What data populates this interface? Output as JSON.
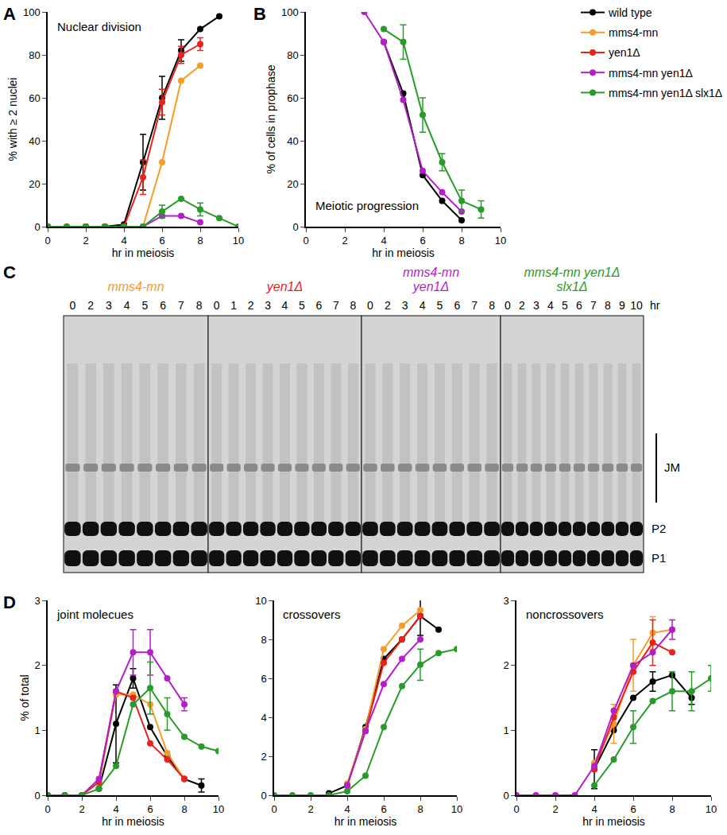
{
  "chart_data": [
    {
      "type": "line",
      "panel": "A",
      "title": "Nuclear division",
      "x_label": "hr in meiosis",
      "y_label": "% with ≥ 2 nuclei",
      "xlim": [
        0,
        10
      ],
      "xticks": [
        0,
        2,
        4,
        6,
        8,
        10
      ],
      "ylim": [
        0,
        100
      ],
      "yticks": [
        0,
        20,
        40,
        60,
        80,
        100
      ],
      "grid": false,
      "legend": "top right",
      "marker": "circle",
      "series": [
        {
          "name": "wild type",
          "color": "#000000",
          "x": [
            0,
            2,
            3,
            4,
            5,
            6,
            7,
            8,
            9
          ],
          "values": [
            0,
            0,
            0,
            1,
            30,
            60,
            82,
            92,
            98
          ],
          "errors": [
            null,
            null,
            null,
            null,
            13,
            10,
            5,
            null,
            null
          ]
        },
        {
          "name": "mms4-mn",
          "color": "#f39c2b",
          "x": [
            0,
            2,
            3,
            4,
            5,
            6,
            7,
            8
          ],
          "values": [
            0,
            0,
            0,
            0,
            0,
            30,
            68,
            75
          ],
          "errors": [
            null,
            null,
            null,
            null,
            null,
            null,
            null,
            null
          ]
        },
        {
          "name": "yen1Δ",
          "color": "#e8231e",
          "x": [
            0,
            1,
            2,
            3,
            4,
            5,
            6,
            7,
            8
          ],
          "values": [
            0,
            0,
            0,
            0,
            0,
            23,
            58,
            80,
            85
          ],
          "errors": [
            null,
            null,
            null,
            null,
            null,
            8,
            6,
            4,
            3
          ]
        },
        {
          "name": "mms4-mn yen1Δ",
          "color": "#b21fc7",
          "x": [
            0,
            2,
            3,
            4,
            5,
            6,
            7,
            8
          ],
          "values": [
            0,
            0,
            0,
            0,
            0,
            5,
            5,
            2
          ],
          "errors": [
            null,
            null,
            null,
            null,
            null,
            null,
            null,
            null
          ]
        },
        {
          "name": "mms4-mn yen1Δ slx1Δ",
          "color": "#2a9a2a",
          "x": [
            0,
            1,
            2,
            3,
            4,
            5,
            6,
            7,
            8,
            9,
            10
          ],
          "values": [
            0,
            0,
            0,
            0,
            0,
            0,
            7,
            13,
            8,
            4,
            0
          ],
          "errors": [
            null,
            null,
            null,
            null,
            null,
            null,
            3,
            null,
            3,
            null,
            null
          ]
        }
      ]
    },
    {
      "type": "line",
      "panel": "B",
      "title": "Meiotic progression",
      "x_label": "hr in meiosis",
      "y_label": "% of cells in prophase",
      "xlim": [
        0,
        10
      ],
      "xticks": [
        0,
        2,
        4,
        6,
        8,
        10
      ],
      "ylim": [
        0,
        100
      ],
      "yticks": [
        0,
        20,
        40,
        60,
        80,
        100
      ],
      "grid": false,
      "marker": "circle",
      "series": [
        {
          "name": "wild type",
          "color": "#000000",
          "x": [
            4,
            5,
            6,
            7,
            8
          ],
          "values": [
            86,
            62,
            24,
            12,
            3
          ],
          "errors": [
            null,
            null,
            null,
            null,
            null
          ]
        },
        {
          "name": "mms4-mn yen1Δ",
          "color": "#b21fc7",
          "x": [
            3,
            4,
            5,
            6,
            7,
            8
          ],
          "values": [
            100,
            86,
            59,
            26,
            16,
            7
          ],
          "errors": [
            null,
            null,
            null,
            null,
            null,
            null
          ]
        },
        {
          "name": "mms4-mn yen1Δ slx1Δ",
          "color": "#2a9a2a",
          "x": [
            4,
            5,
            6,
            7,
            8,
            9
          ],
          "values": [
            92,
            86,
            52,
            30,
            12,
            8
          ],
          "errors": [
            null,
            8,
            8,
            4,
            5,
            4
          ]
        }
      ]
    },
    {
      "type": "line",
      "panel": "D",
      "title": "joint molecues",
      "x_label": "hr in meiosis",
      "y_label": "% of total",
      "xlim": [
        0,
        10
      ],
      "xticks": [
        0,
        2,
        4,
        6,
        8,
        10
      ],
      "ylim": [
        0,
        3
      ],
      "yticks": [
        0,
        1,
        2,
        3
      ],
      "grid": false,
      "marker": "circle",
      "series": [
        {
          "name": "wild type",
          "color": "#000000",
          "x": [
            3,
            4,
            5,
            6,
            7,
            8,
            9
          ],
          "values": [
            0.1,
            1.1,
            1.8,
            1.05,
            0.6,
            0.25,
            0.15
          ],
          "errors": [
            null,
            0.6,
            0.15,
            null,
            null,
            null,
            0.1
          ]
        },
        {
          "name": "mms4-mn",
          "color": "#f39c2b",
          "x": [
            3,
            4,
            5,
            6,
            7,
            8
          ],
          "values": [
            0.2,
            1.55,
            1.55,
            1.4,
            0.65,
            0.25
          ],
          "errors": [
            null,
            null,
            null,
            null,
            null,
            null
          ]
        },
        {
          "name": "yen1Δ",
          "color": "#e8231e",
          "x": [
            0,
            1,
            2,
            3,
            4,
            5,
            6,
            7,
            8
          ],
          "values": [
            0,
            0,
            0,
            0.2,
            1.6,
            1.5,
            0.8,
            0.55,
            0.25
          ],
          "errors": [
            null,
            null,
            null,
            null,
            null,
            null,
            null,
            null,
            null
          ]
        },
        {
          "name": "mms4-mn yen1Δ",
          "color": "#b21fc7",
          "x": [
            0,
            1,
            2,
            3,
            4,
            5,
            6,
            7,
            8
          ],
          "values": [
            0,
            0,
            0,
            0.25,
            1.6,
            2.2,
            2.2,
            1.8,
            1.4
          ],
          "errors": [
            null,
            null,
            null,
            null,
            null,
            0.35,
            0.35,
            null,
            0.1
          ]
        },
        {
          "name": "mms4-mn yen1Δ slx1Δ",
          "color": "#2a9a2a",
          "x": [
            0,
            1,
            2,
            3,
            4,
            5,
            6,
            7,
            8,
            9,
            10
          ],
          "values": [
            0,
            0,
            0,
            0.1,
            0.45,
            1.4,
            1.65,
            1.25,
            0.9,
            0.75,
            0.68
          ],
          "errors": [
            null,
            null,
            null,
            null,
            null,
            null,
            0.4,
            0.25,
            null,
            null,
            null
          ]
        }
      ]
    },
    {
      "type": "line",
      "title": "crossovers",
      "x_label": "hr in meiosis",
      "xlim": [
        0,
        10
      ],
      "xticks": [
        0,
        2,
        4,
        6,
        8,
        10
      ],
      "ylim": [
        0,
        10
      ],
      "yticks": [
        0,
        2,
        4,
        6,
        8,
        10
      ],
      "grid": false,
      "marker": "circle",
      "series": [
        {
          "name": "wild type",
          "color": "#000000",
          "x": [
            3,
            4,
            5,
            6,
            7,
            8,
            9
          ],
          "values": [
            0.1,
            0.5,
            3.5,
            7,
            8,
            9.2,
            8.5
          ],
          "errors": [
            null,
            null,
            null,
            null,
            null,
            1,
            null
          ]
        },
        {
          "name": "mms4-mn",
          "color": "#f39c2b",
          "x": [
            4,
            5,
            6,
            7,
            8
          ],
          "values": [
            0.6,
            3.4,
            7.5,
            8.7,
            9.5
          ],
          "errors": [
            null,
            null,
            null,
            null,
            null
          ]
        },
        {
          "name": "yen1Δ",
          "color": "#e8231e",
          "x": [
            4,
            5,
            6,
            7,
            8
          ],
          "values": [
            0.5,
            3.3,
            6.8,
            8,
            9.2
          ],
          "errors": [
            null,
            null,
            null,
            null,
            null
          ]
        },
        {
          "name": "mms4-mn yen1Δ",
          "color": "#b21fc7",
          "x": [
            4,
            5,
            6,
            7,
            8
          ],
          "values": [
            0.5,
            3.3,
            5.7,
            7,
            8
          ],
          "errors": [
            null,
            null,
            null,
            null,
            null
          ]
        },
        {
          "name": "mms4-mn yen1Δ slx1Δ",
          "color": "#2a9a2a",
          "x": [
            0,
            1,
            2,
            3,
            4,
            5,
            6,
            7,
            8,
            9,
            10
          ],
          "values": [
            0,
            0,
            0,
            0,
            0.2,
            1,
            3.5,
            5.6,
            6.7,
            7.3,
            7.5
          ],
          "errors": [
            null,
            null,
            null,
            null,
            null,
            null,
            null,
            null,
            0.8,
            null,
            null
          ]
        }
      ]
    },
    {
      "type": "line",
      "title": "noncrossovers",
      "x_label": "hr in meiosis",
      "xlim": [
        0,
        10
      ],
      "xticks": [
        0,
        2,
        4,
        6,
        8,
        10
      ],
      "ylim": [
        0,
        3
      ],
      "yticks": [
        0,
        1,
        2,
        3
      ],
      "grid": false,
      "marker": "circle",
      "series": [
        {
          "name": "wild type",
          "color": "#000000",
          "x": [
            4,
            5,
            6,
            7,
            8,
            9
          ],
          "values": [
            0.4,
            1,
            1.5,
            1.75,
            1.85,
            1.5
          ],
          "errors": [
            0.3,
            null,
            null,
            0.15,
            null,
            0.1
          ]
        },
        {
          "name": "mms4-mn",
          "color": "#f39c2b",
          "x": [
            4,
            5,
            6,
            7,
            8
          ],
          "values": [
            0.5,
            1.1,
            2,
            2.5,
            2.55
          ],
          "errors": [
            null,
            0.3,
            0.4,
            0.25,
            null
          ]
        },
        {
          "name": "yen1Δ",
          "color": "#e8231e",
          "x": [
            4,
            5,
            6,
            7,
            8
          ],
          "values": [
            0.4,
            1.2,
            1.9,
            2.35,
            2.2
          ],
          "errors": [
            null,
            null,
            null,
            0.35,
            null
          ]
        },
        {
          "name": "mms4-mn yen1Δ",
          "color": "#b21fc7",
          "x": [
            0,
            1,
            2,
            3,
            4,
            5,
            6,
            7,
            8
          ],
          "values": [
            0,
            0,
            0,
            0,
            0.45,
            1.3,
            2,
            2.2,
            2.55
          ],
          "errors": [
            null,
            null,
            null,
            null,
            null,
            null,
            null,
            null,
            0.15
          ]
        },
        {
          "name": "mms4-mn yen1Δ slx1Δ",
          "color": "#2a9a2a",
          "x": [
            4,
            5,
            6,
            7,
            8,
            9,
            10
          ],
          "values": [
            0.15,
            0.55,
            1.05,
            1.45,
            1.6,
            1.6,
            1.8
          ],
          "errors": [
            null,
            null,
            0.25,
            null,
            0.3,
            0.3,
            0.2
          ]
        }
      ]
    }
  ],
  "gel": {
    "panel": "C",
    "unit": "hr",
    "bands": [
      "JM",
      "P2",
      "P1"
    ],
    "groups": [
      {
        "name": [
          "mms4-mn"
        ],
        "color": "#f39c2b",
        "lanes": [
          0,
          2,
          3,
          4,
          5,
          6,
          7,
          8
        ]
      },
      {
        "name": [
          "yen1Δ"
        ],
        "color": "#e8231e",
        "lanes": [
          0,
          1,
          2,
          3,
          4,
          5,
          6,
          7,
          8
        ]
      },
      {
        "name": [
          "mms4-mn",
          "yen1Δ"
        ],
        "color": "#b21fc7",
        "lanes": [
          0,
          2,
          3,
          4,
          5,
          6,
          7,
          8
        ]
      },
      {
        "name": [
          "mms4-mn yen1Δ",
          "slx1Δ"
        ],
        "color": "#2a9a2a",
        "lanes": [
          0,
          2,
          3,
          4,
          5,
          6,
          7,
          8,
          9,
          10
        ]
      }
    ]
  }
}
